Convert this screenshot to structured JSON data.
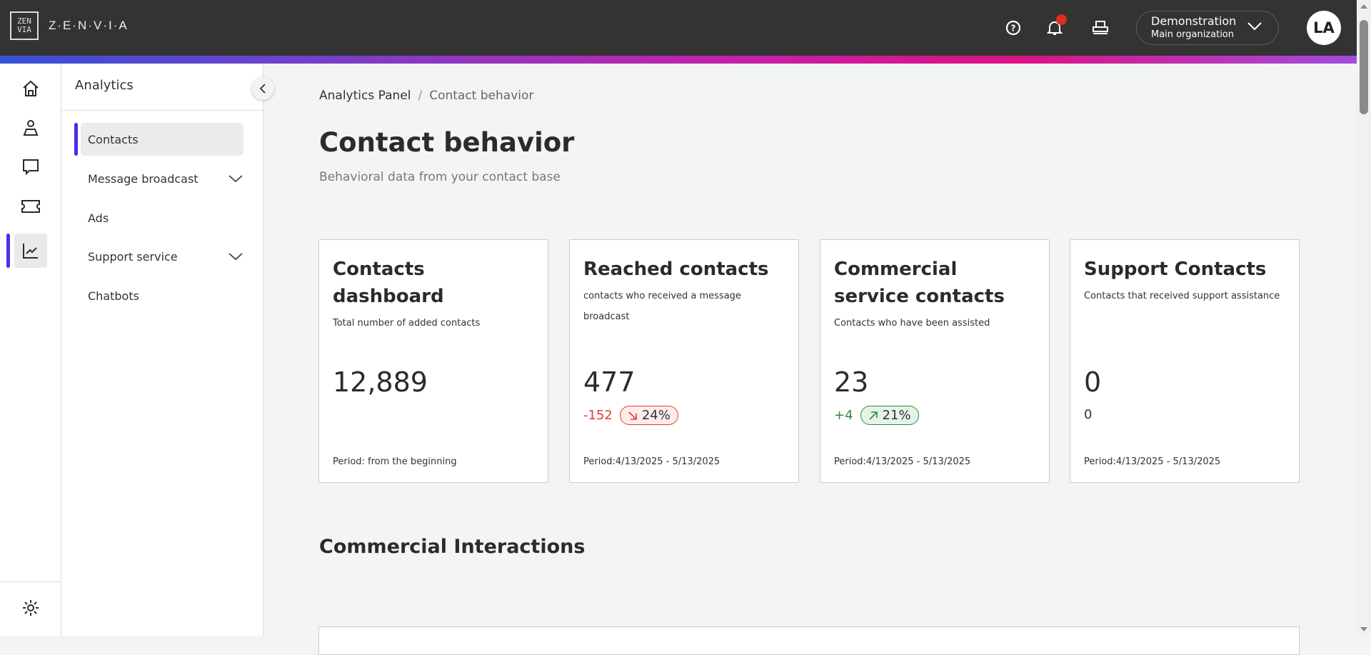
{
  "header": {
    "logo_text": "Z·E·N·V·I·A",
    "logo_mark": "ZEN VIA",
    "icons": [
      "help-circle-icon",
      "bell-icon",
      "printer-icon"
    ],
    "org_name": "Demonstration",
    "org_sub": "Main organization",
    "avatar": "LA",
    "notification_color": "#e02b20"
  },
  "rail": {
    "items": [
      "home-icon",
      "user-icon",
      "chat-icon",
      "ticket-icon",
      "analytics-icon"
    ],
    "active": "analytics-icon",
    "bottom": "settings-icon"
  },
  "sidebar": {
    "title": "Analytics",
    "items": [
      {
        "label": "Contacts",
        "active": true
      },
      {
        "label": "Message broadcast",
        "expandable": true
      },
      {
        "label": "Ads"
      },
      {
        "label": "Support service",
        "expandable": true
      },
      {
        "label": "Chatbots"
      }
    ]
  },
  "breadcrumb": {
    "parent": "Analytics Panel",
    "separator": "/",
    "current": "Contact behavior"
  },
  "page": {
    "title": "Contact behavior",
    "subtitle": "Behavioral data from your contact base"
  },
  "cards": [
    {
      "title": "Contacts dashboard",
      "desc": "Total number of added contacts",
      "value": "12,889",
      "period": "Period: from the beginning"
    },
    {
      "title": "Reached contacts",
      "desc": "contacts who received a message broadcast",
      "value": "477",
      "delta": "-152",
      "pct": "24%",
      "trend": "down",
      "period": "Period:4/13/2025 - 5/13/2025"
    },
    {
      "title": "Commercial service contacts",
      "desc": "Contacts who have been assisted",
      "value": "23",
      "delta": "+4",
      "pct": "21%",
      "trend": "up",
      "period": "Period:4/13/2025 - 5/13/2025"
    },
    {
      "title": "Support Contacts",
      "desc": "Contacts that received support assistance",
      "value": "0",
      "delta": "0",
      "period": "Period:4/13/2025 - 5/13/2025"
    }
  ],
  "section": {
    "title": "Commercial Interactions"
  },
  "colors": {
    "accent": "#4a2ee6",
    "negative": "#e23a2a",
    "positive": "#2d8a3e",
    "header": "#333333"
  }
}
